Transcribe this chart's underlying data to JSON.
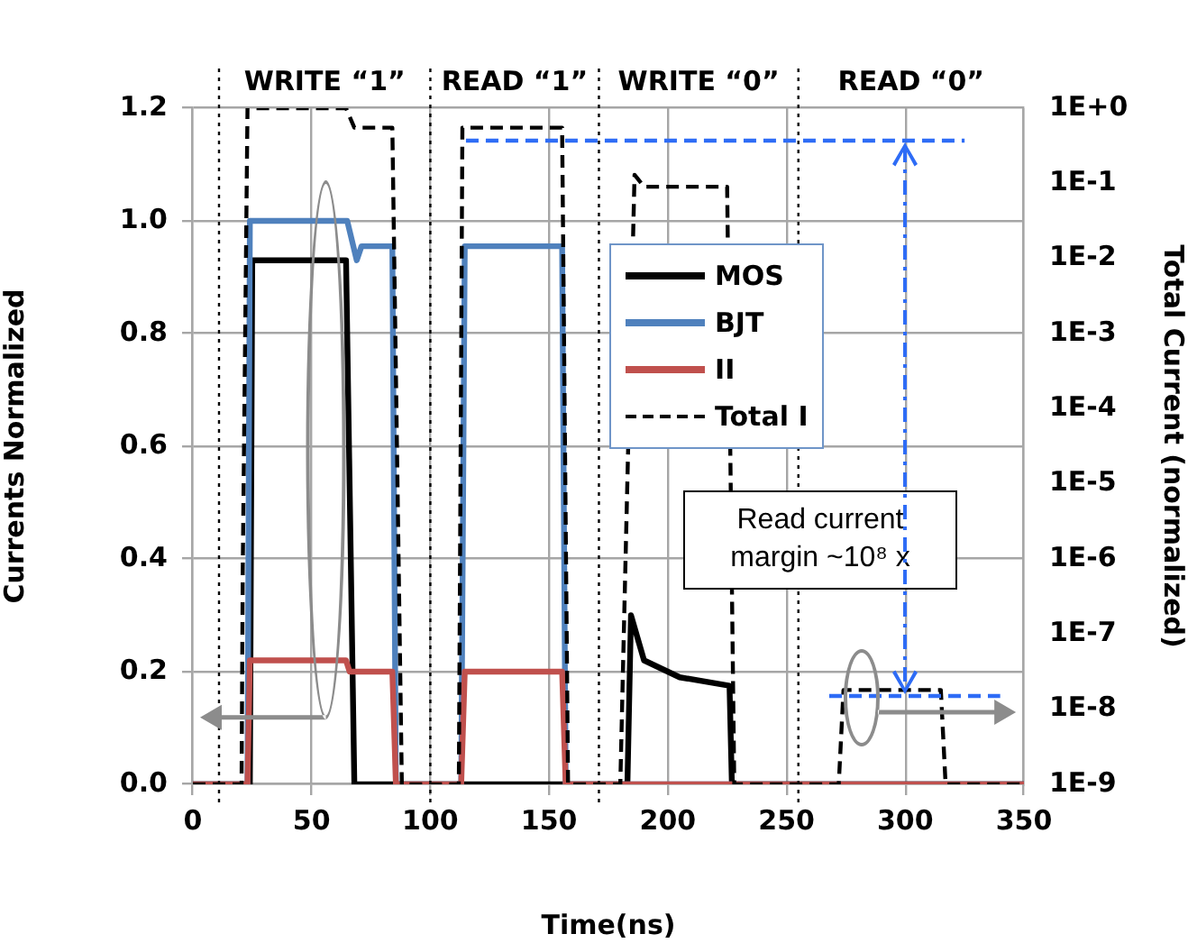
{
  "chart_data": {
    "type": "line",
    "xlabel": "Time(ns)",
    "ylabel": "Currents Normalized",
    "y2label": "Total Current (normalized)",
    "xlim": [
      0,
      350
    ],
    "xticks": [
      0,
      50,
      100,
      150,
      200,
      250,
      300,
      350
    ],
    "ylim": [
      0,
      1.2
    ],
    "yticks": [
      {
        "value": 0,
        "label": "0.0"
      },
      {
        "value": 0.2,
        "label": "0.2"
      },
      {
        "value": 0.4,
        "label": "0.4"
      },
      {
        "value": 0.6,
        "label": "0.6"
      },
      {
        "value": 0.8,
        "label": "0.8"
      },
      {
        "value": 1,
        "label": "1.0"
      },
      {
        "value": 1.2,
        "label": "1.2"
      }
    ],
    "y2lim": [
      1e-09,
      1
    ],
    "y2ticks": [
      {
        "value": 1,
        "label": "1E+0"
      },
      {
        "value": 0.1,
        "label": "1E-1"
      },
      {
        "value": 0.01,
        "label": "1E-2"
      },
      {
        "value": 0.001,
        "label": "1E-3"
      },
      {
        "value": 0.0001,
        "label": "1E-4"
      },
      {
        "value": 1e-05,
        "label": "1E-5"
      },
      {
        "value": 1e-06,
        "label": "1E-6"
      },
      {
        "value": 1e-07,
        "label": "1E-7"
      },
      {
        "value": 1e-08,
        "label": "1E-8"
      },
      {
        "value": 1e-09,
        "label": "1E-9"
      }
    ],
    "log": "y2",
    "grid": true,
    "legend": "center",
    "marker": "none",
    "series": [
      {
        "name": "MOS",
        "color": "#000000",
        "line_style": "solid",
        "x": [
          0,
          24,
          25,
          64.5,
          68,
          183,
          184.5,
          190,
          205,
          226,
          227,
          350
        ],
        "values": [
          0,
          0,
          0.93,
          0.93,
          0,
          0,
          0.3,
          0.22,
          0.19,
          0.175,
          0,
          0
        ]
      },
      {
        "name": "BJT",
        "color": "#4f81bd",
        "line_style": "solid",
        "x": [
          0,
          23,
          24,
          65,
          69,
          71,
          84,
          85.5,
          113,
          114.5,
          155.5,
          157,
          350
        ],
        "values": [
          0,
          0,
          1,
          1,
          0.93,
          0.955,
          0.955,
          0,
          0,
          0.955,
          0.955,
          0,
          0
        ]
      },
      {
        "name": "II",
        "color": "#c0504d",
        "line_style": "solid",
        "x": [
          0,
          23,
          24,
          64.5,
          66,
          84,
          85.5,
          113,
          114.5,
          155.5,
          157,
          350
        ],
        "values": [
          0,
          0,
          0.22,
          0.22,
          0.2,
          0.2,
          0,
          0,
          0.2,
          0.2,
          0,
          0
        ]
      },
      {
        "name": "Total I",
        "color": "#000000",
        "line_style": "dashed",
        "axis": "y2",
        "x": [
          0,
          20.5,
          21,
          23,
          64.5,
          68,
          84,
          88,
          112,
          113.5,
          155.5,
          158,
          180,
          186,
          190,
          225,
          228,
          272,
          274,
          315,
          317,
          350
        ],
        "values": [
          1e-09,
          1e-09,
          7e-07,
          1,
          1,
          0.55,
          0.55,
          1e-09,
          1e-09,
          0.55,
          0.55,
          1e-09,
          1e-09,
          0.13,
          0.09,
          0.09,
          1e-09,
          1e-09,
          1.8e-08,
          1.8e-08,
          1e-09,
          1e-09
        ]
      },
      {
        "color": "#2e6cf6",
        "line_style": "dashed",
        "axis": "y2",
        "x": [
          115,
          325
        ],
        "values": [
          0.37,
          0.37
        ]
      },
      {
        "color": "#2e6cf6",
        "line_style": "dashed",
        "axis": "y2",
        "x": [
          268,
          340
        ],
        "values": [
          1.5e-08,
          1.5e-08
        ]
      }
    ],
    "ref_lines": [
      {
        "axis": "x",
        "value": 11,
        "color": "#000000",
        "line_style": "dotted"
      },
      {
        "axis": "x",
        "value": 100,
        "color": "#000000",
        "line_style": "dotted"
      },
      {
        "axis": "x",
        "value": 171,
        "color": "#000000",
        "line_style": "dotted"
      },
      {
        "axis": "x",
        "value": 255,
        "color": "#000000",
        "line_style": "dotted"
      }
    ],
    "annotations": [
      "WRITE “1”",
      "READ “1”",
      "WRITE “0”",
      "READ “0”",
      "Read current margin ~10⁸ x"
    ]
  }
}
